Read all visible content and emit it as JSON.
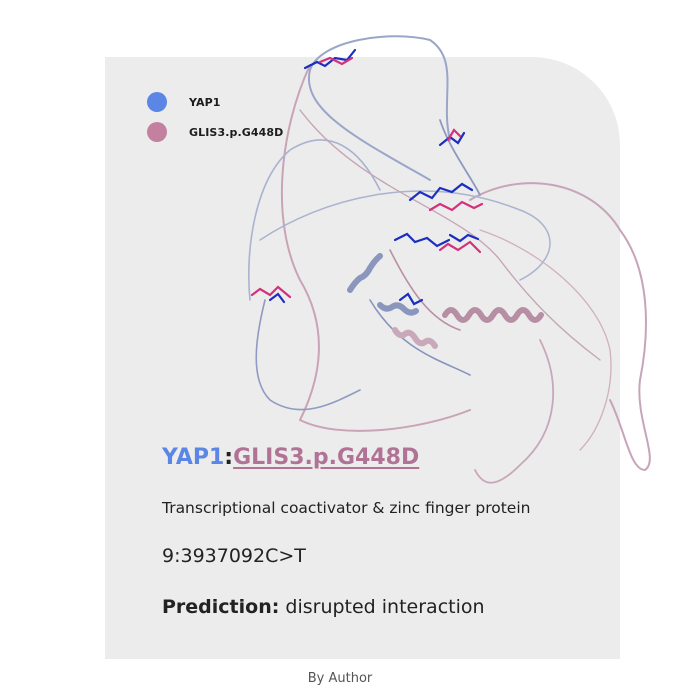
{
  "legend": [
    {
      "label": "YAP1",
      "color": "#5b86e5"
    },
    {
      "label": "GLIS3.p.G448D",
      "color": "#c4809f"
    }
  ],
  "title": {
    "protein1": "YAP1",
    "separator": ":",
    "protein2": "GLIS3.p.G448D"
  },
  "description": "Transcriptional coactivator & zinc finger protein",
  "variant": "9:3937092C>T",
  "prediction": {
    "label": "Prediction:",
    "value": "disrupted interaction"
  },
  "credit": "By Author",
  "colors": {
    "card_bg": "#ececec",
    "yap1": "#5b86e5",
    "glis3": "#b07396",
    "residue_blue": "#1a2fbf",
    "residue_pink": "#d4307c"
  }
}
